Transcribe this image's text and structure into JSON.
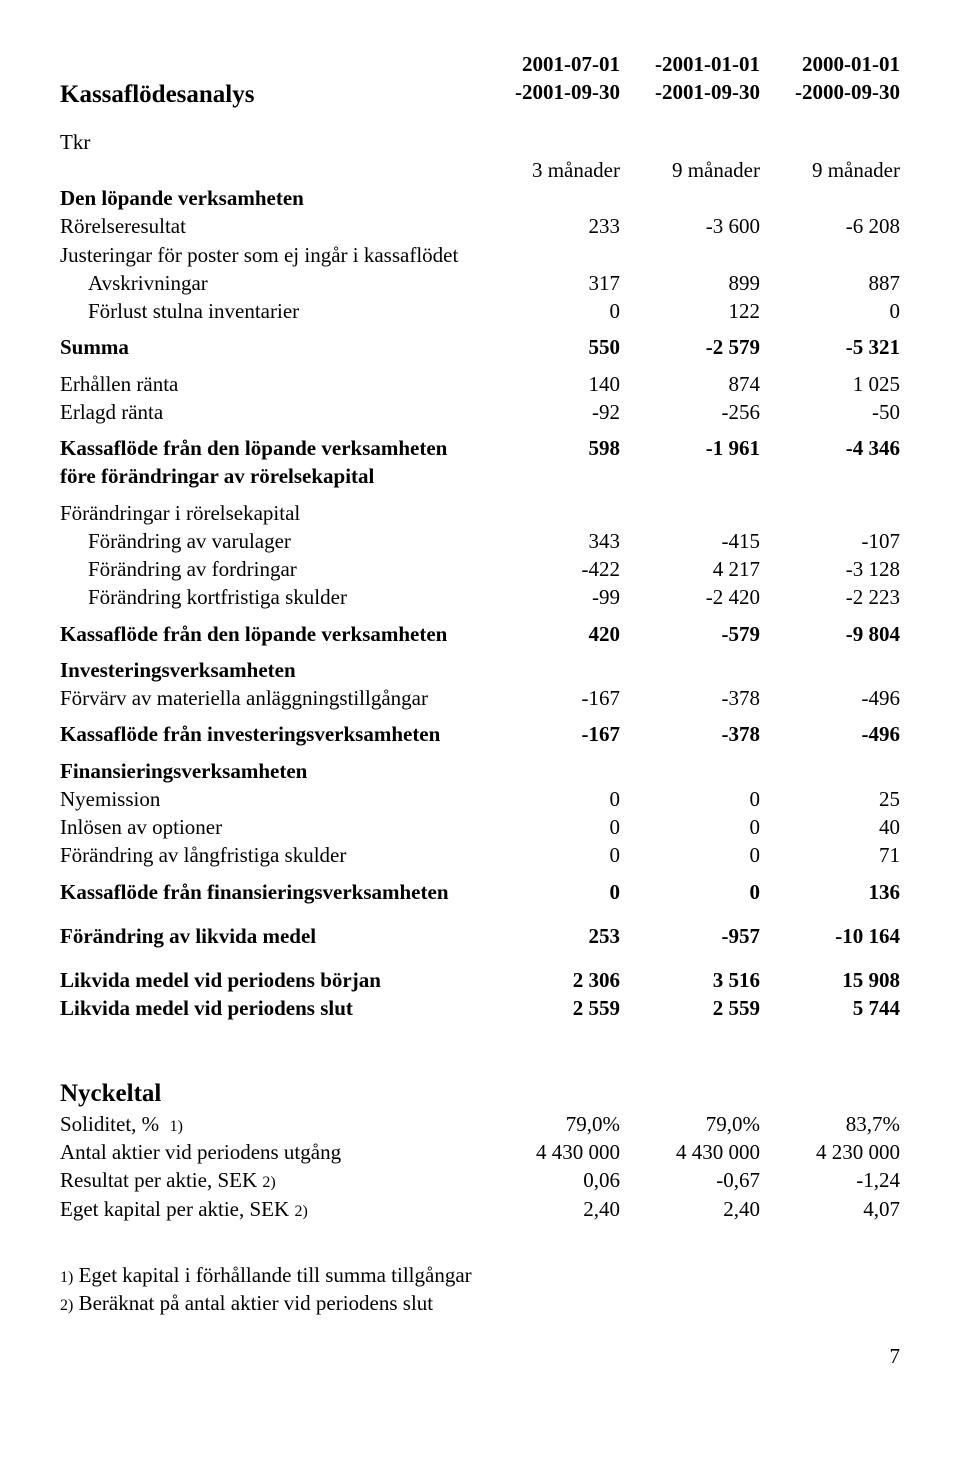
{
  "title": "Kassaflödesanalys",
  "header": {
    "c1a": "2001-07-01",
    "c1b": "-2001-09-30",
    "c2a": "-2001-01-01",
    "c2b": "-2001-09-30",
    "c3a": "2000-01-01",
    "c3b": "-2000-09-30"
  },
  "tkr": "Tkr",
  "periods": {
    "c1": "3 månader",
    "c2": "9 månader",
    "c3": "9 månader"
  },
  "cf": {
    "sec1": "Den löpande verksamheten",
    "r1": {
      "l": "Rörelseresultat",
      "c1": "233",
      "c2": "-3 600",
      "c3": "-6 208"
    },
    "r2": {
      "l": "Justeringar för poster som ej ingår i kassaflödet"
    },
    "r3": {
      "l": "Avskrivningar",
      "c1": "317",
      "c2": "899",
      "c3": "887"
    },
    "r4": {
      "l": "Förlust stulna inventarier",
      "c1": "0",
      "c2": "122",
      "c3": "0"
    },
    "r5": {
      "l": "Summa",
      "c1": "550",
      "c2": "-2 579",
      "c3": "-5 321"
    },
    "r6": {
      "l": "Erhållen ränta",
      "c1": "140",
      "c2": "874",
      "c3": "1 025"
    },
    "r7": {
      "l": "Erlagd ränta",
      "c1": "-92",
      "c2": "-256",
      "c3": "-50"
    },
    "r8": {
      "l1": "Kassaflöde från den löpande verksamheten",
      "l2": "före förändringar av rörelsekapital",
      "c1": "598",
      "c2": "-1 961",
      "c3": "-4 346"
    },
    "r9": {
      "l": "Förändringar i rörelsekapital"
    },
    "r10": {
      "l": "Förändring av varulager",
      "c1": "343",
      "c2": "-415",
      "c3": "-107"
    },
    "r11": {
      "l": "Förändring av fordringar",
      "c1": "-422",
      "c2": "4 217",
      "c3": "-3 128"
    },
    "r12": {
      "l": "Förändring kortfristiga skulder",
      "c1": "-99",
      "c2": "-2 420",
      "c3": "-2 223"
    },
    "r13": {
      "l": "Kassaflöde från den löpande verksamheten",
      "c1": "420",
      "c2": "-579",
      "c3": "-9 804"
    },
    "sec2": "Investeringsverksamheten",
    "r14": {
      "l": "Förvärv av materiella anläggningstillgångar",
      "c1": "-167",
      "c2": "-378",
      "c3": "-496"
    },
    "r15": {
      "l": "Kassaflöde från investeringsverksamheten",
      "c1": "-167",
      "c2": "-378",
      "c3": "-496"
    },
    "sec3": "Finansieringsverksamheten",
    "r16": {
      "l": "Nyemission",
      "c1": "0",
      "c2": "0",
      "c3": "25"
    },
    "r17": {
      "l": "Inlösen av optioner",
      "c1": "0",
      "c2": "0",
      "c3": "40"
    },
    "r18": {
      "l": "Förändring av långfristiga skulder",
      "c1": "0",
      "c2": "0",
      "c3": "71"
    },
    "r19": {
      "l": "Kassaflöde från finansieringsverksamheten",
      "c1": "0",
      "c2": "0",
      "c3": "136"
    },
    "r20": {
      "l": "Förändring av likvida medel",
      "c1": "253",
      "c2": "-957",
      "c3": "-10 164"
    },
    "r21": {
      "l": "Likvida medel vid periodens början",
      "c1": "2 306",
      "c2": "3 516",
      "c3": "15 908"
    },
    "r22": {
      "l": "Likvida medel vid periodens slut",
      "c1": "2 559",
      "c2": "2 559",
      "c3": "5 744"
    }
  },
  "ratios_title": "Nyckeltal",
  "ratios": {
    "r1": {
      "l": "Soliditet, %",
      "note": "1)",
      "c1": "79,0%",
      "c2": "79,0%",
      "c3": "83,7%"
    },
    "r2": {
      "l": "Antal aktier vid periodens utgång",
      "c1": "4 430 000",
      "c2": "4 430 000",
      "c3": "4 230 000"
    },
    "r3": {
      "l": "Resultat per aktie,  SEK",
      "note": "2)",
      "c1": "0,06",
      "c2": "-0,67",
      "c3": "-1,24"
    },
    "r4": {
      "l": "Eget kapital per aktie,  SEK",
      "note": "2)",
      "c1": "2,40",
      "c2": "2,40",
      "c3": "4,07"
    }
  },
  "footnotes": {
    "f1": {
      "n": "1)",
      "t": "Eget kapital i förhållande till summa tillgångar"
    },
    "f2": {
      "n": "2)",
      "t": "Beräknat på antal aktier vid periodens slut"
    }
  },
  "page": "7"
}
